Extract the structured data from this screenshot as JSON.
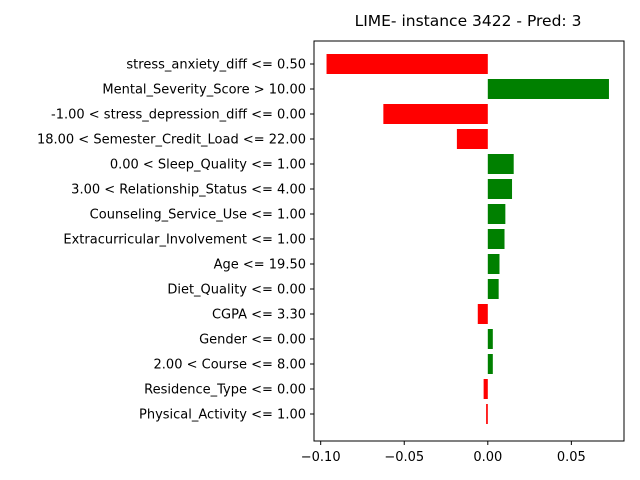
{
  "chart_data": {
    "type": "bar",
    "orientation": "horizontal",
    "title": "LIME- instance 3422 - Pred: 3",
    "xlabel": "",
    "ylabel": "",
    "xlim": [
      -0.104,
      0.0815
    ],
    "xticks": [
      -0.1,
      -0.05,
      0.0,
      0.05
    ],
    "xtick_labels": [
      "−0.10",
      "−0.05",
      "0.00",
      "0.05"
    ],
    "grid": false,
    "positive_color": "#008000",
    "negative_color": "#ff0000",
    "categories": [
      "stress_anxiety_diff <= 0.50",
      "Mental_Severity_Score > 10.00",
      "-1.00 < stress_depression_diff <= 0.00",
      "18.00 < Semester_Credit_Load <= 22.00",
      "0.00 < Sleep_Quality <= 1.00",
      "3.00 < Relationship_Status <= 4.00",
      "Counseling_Service_Use <= 1.00",
      "Extracurricular_Involvement <= 1.00",
      "Age <= 19.50",
      "Diet_Quality <= 0.00",
      "CGPA <= 3.30",
      "Gender <= 0.00",
      "2.00 < Course <= 8.00",
      "Residence_Type <= 0.00",
      "Physical_Activity <= 1.00"
    ],
    "values": [
      -0.0965,
      0.0725,
      -0.0625,
      -0.0185,
      0.0155,
      0.0145,
      0.0105,
      0.01,
      0.007,
      0.0065,
      -0.006,
      0.003,
      0.003,
      -0.0025,
      -0.001
    ]
  }
}
